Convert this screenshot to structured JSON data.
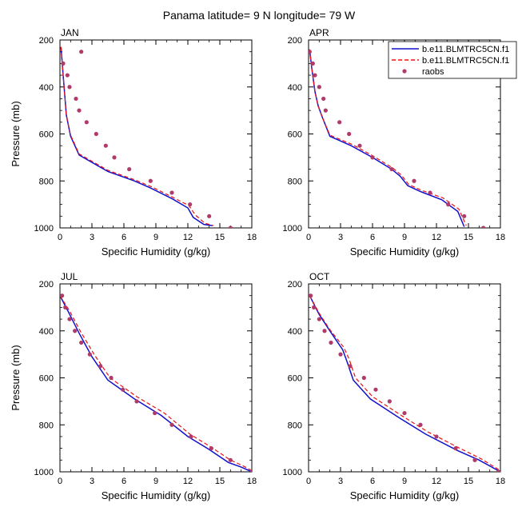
{
  "title": "Panama  latitude= 9 N longitude= 79 W",
  "colors": {
    "model1": "#1111cc",
    "model2": "#ee1111",
    "obs": "#b03a6a"
  },
  "legend": {
    "placement": "top-right of APR panel",
    "entries": [
      "b.e11.BLMTRC5CN.f1",
      "b.e11.BLMTRC5CN.f1",
      "raobs"
    ]
  },
  "chart_data": [
    {
      "type": "line",
      "title": "JAN",
      "xlabel": "Specific Humidity (g/kg)",
      "ylabel": "Pressure (mb)",
      "xlim": [
        0,
        18
      ],
      "ylim": [
        200,
        1000
      ],
      "y_inverted": true,
      "xticks": [
        0,
        3,
        6,
        9,
        12,
        15,
        18
      ],
      "yticks": [
        200,
        400,
        600,
        800,
        1000
      ],
      "series": [
        {
          "name": "b.e11.BLMTRC5CN.f1",
          "style": "solid",
          "color": "#1111cc",
          "points": [
            [
              0.1,
              230
            ],
            [
              0.3,
              350
            ],
            [
              0.6,
              520
            ],
            [
              1.0,
              610
            ],
            [
              1.8,
              690
            ],
            [
              4.5,
              760
            ],
            [
              7.0,
              800
            ],
            [
              8.5,
              830
            ],
            [
              10.5,
              875
            ],
            [
              12.0,
              915
            ],
            [
              12.5,
              955
            ],
            [
              13.5,
              985
            ],
            [
              14.3,
              990
            ]
          ]
        },
        {
          "name": "b.e11.BLMTRC5CN.f1",
          "style": "dashed",
          "color": "#ee1111",
          "points": [
            [
              0.1,
              230
            ],
            [
              0.3,
              350
            ],
            [
              0.6,
              520
            ],
            [
              1.0,
              605
            ],
            [
              1.8,
              685
            ],
            [
              4.5,
              755
            ],
            [
              7.0,
              795
            ],
            [
              8.6,
              825
            ],
            [
              10.6,
              870
            ],
            [
              12.1,
              905
            ],
            [
              12.7,
              945
            ],
            [
              13.6,
              980
            ],
            [
              14.4,
              990
            ]
          ]
        },
        {
          "name": "raobs",
          "style": "markers",
          "color": "#b03a6a",
          "points": [
            [
              2.0,
              250
            ],
            [
              0.3,
              300
            ],
            [
              0.7,
              350
            ],
            [
              0.9,
              400
            ],
            [
              1.5,
              450
            ],
            [
              1.8,
              500
            ],
            [
              2.5,
              550
            ],
            [
              3.4,
              600
            ],
            [
              4.3,
              650
            ],
            [
              5.1,
              700
            ],
            [
              6.5,
              750
            ],
            [
              8.5,
              800
            ],
            [
              10.5,
              850
            ],
            [
              12.2,
              900
            ],
            [
              14.0,
              950
            ],
            [
              16.0,
              1000
            ]
          ]
        }
      ]
    },
    {
      "type": "line",
      "title": "APR",
      "xlabel": "Specific Humidity (g/kg)",
      "ylabel": "",
      "xlim": [
        0,
        18
      ],
      "ylim": [
        200,
        1000
      ],
      "y_inverted": true,
      "xticks": [
        0,
        3,
        6,
        9,
        12,
        15,
        18
      ],
      "yticks": [
        200,
        400,
        600,
        800,
        1000
      ],
      "series": [
        {
          "name": "b.e11.BLMTRC5CN.f1",
          "style": "solid",
          "color": "#1111cc",
          "points": [
            [
              0.1,
              240
            ],
            [
              0.3,
              320
            ],
            [
              0.6,
              420
            ],
            [
              0.9,
              480
            ],
            [
              1.3,
              530
            ],
            [
              2.0,
              610
            ],
            [
              4.0,
              650
            ],
            [
              6.0,
              700
            ],
            [
              7.8,
              750
            ],
            [
              8.6,
              780
            ],
            [
              9.3,
              820
            ],
            [
              10.5,
              845
            ],
            [
              12.5,
              880
            ],
            [
              14.0,
              930
            ],
            [
              14.6,
              995
            ]
          ]
        },
        {
          "name": "b.e11.BLMTRC5CN.f1",
          "style": "dashed",
          "color": "#ee1111",
          "points": [
            [
              0.1,
              240
            ],
            [
              0.3,
              320
            ],
            [
              0.6,
              420
            ],
            [
              0.9,
              480
            ],
            [
              1.3,
              530
            ],
            [
              2.0,
              605
            ],
            [
              4.1,
              645
            ],
            [
              6.1,
              695
            ],
            [
              7.9,
              745
            ],
            [
              8.7,
              775
            ],
            [
              9.4,
              815
            ],
            [
              10.6,
              840
            ],
            [
              12.6,
              872
            ],
            [
              14.1,
              920
            ],
            [
              14.8,
              990
            ]
          ]
        },
        {
          "name": "raobs",
          "style": "markers",
          "color": "#b03a6a",
          "points": [
            [
              0.1,
              250
            ],
            [
              0.4,
              300
            ],
            [
              0.6,
              350
            ],
            [
              1.0,
              400
            ],
            [
              1.4,
              450
            ],
            [
              1.6,
              500
            ],
            [
              2.9,
              550
            ],
            [
              3.8,
              600
            ],
            [
              4.8,
              650
            ],
            [
              6.0,
              700
            ],
            [
              7.8,
              750
            ],
            [
              9.9,
              800
            ],
            [
              11.4,
              850
            ],
            [
              13.1,
              900
            ],
            [
              14.6,
              950
            ],
            [
              16.4,
              1000
            ]
          ]
        }
      ]
    },
    {
      "type": "line",
      "title": "JUL",
      "xlabel": "Specific Humidity (g/kg)",
      "ylabel": "Pressure (mb)",
      "xlim": [
        0,
        18
      ],
      "ylim": [
        200,
        1000
      ],
      "y_inverted": true,
      "xticks": [
        0,
        3,
        6,
        9,
        12,
        15,
        18
      ],
      "yticks": [
        200,
        400,
        600,
        800,
        1000
      ],
      "series": [
        {
          "name": "b.e11.BLMTRC5CN.f1",
          "style": "solid",
          "color": "#1111cc",
          "points": [
            [
              0.0,
              250
            ],
            [
              0.8,
              320
            ],
            [
              1.8,
              410
            ],
            [
              3.0,
              510
            ],
            [
              4.5,
              610
            ],
            [
              7.0,
              690
            ],
            [
              9.5,
              760
            ],
            [
              12.0,
              850
            ],
            [
              14.0,
              905
            ],
            [
              15.8,
              960
            ],
            [
              17.0,
              980
            ],
            [
              18.0,
              1000
            ]
          ]
        },
        {
          "name": "b.e11.BLMTRC5CN.f1",
          "style": "dashed",
          "color": "#ee1111",
          "points": [
            [
              0.0,
              250
            ],
            [
              0.9,
              315
            ],
            [
              1.9,
              400
            ],
            [
              3.2,
              500
            ],
            [
              4.7,
              600
            ],
            [
              7.2,
              680
            ],
            [
              9.8,
              750
            ],
            [
              12.2,
              840
            ],
            [
              14.2,
              895
            ],
            [
              16.0,
              950
            ],
            [
              17.2,
              975
            ],
            [
              18.0,
              995
            ]
          ]
        },
        {
          "name": "raobs",
          "style": "markers",
          "color": "#b03a6a",
          "points": [
            [
              0.2,
              250
            ],
            [
              0.5,
              300
            ],
            [
              0.9,
              350
            ],
            [
              1.4,
              400
            ],
            [
              2.0,
              450
            ],
            [
              2.8,
              500
            ],
            [
              3.8,
              550
            ],
            [
              4.8,
              600
            ],
            [
              5.9,
              650
            ],
            [
              7.2,
              700
            ],
            [
              8.9,
              750
            ],
            [
              10.5,
              800
            ],
            [
              12.3,
              850
            ],
            [
              14.2,
              900
            ],
            [
              16.0,
              950
            ],
            [
              18.0,
              1000
            ]
          ]
        }
      ]
    },
    {
      "type": "line",
      "title": "OCT",
      "xlabel": "Specific Humidity (g/kg)",
      "ylabel": "",
      "xlim": [
        0,
        18
      ],
      "ylim": [
        200,
        1000
      ],
      "y_inverted": true,
      "xticks": [
        0,
        3,
        6,
        9,
        12,
        15,
        18
      ],
      "yticks": [
        200,
        400,
        600,
        800,
        1000
      ],
      "series": [
        {
          "name": "b.e11.BLMTRC5CN.f1",
          "style": "solid",
          "color": "#1111cc",
          "points": [
            [
              0.1,
              250
            ],
            [
              1.0,
              330
            ],
            [
              2.0,
              400
            ],
            [
              3.2,
              480
            ],
            [
              3.6,
              530
            ],
            [
              4.2,
              610
            ],
            [
              5.8,
              690
            ],
            [
              8.5,
              770
            ],
            [
              11.0,
              840
            ],
            [
              14.0,
              910
            ],
            [
              16.0,
              950
            ],
            [
              18.0,
              1000
            ]
          ]
        },
        {
          "name": "b.e11.BLMTRC5CN.f1",
          "style": "dashed",
          "color": "#ee1111",
          "points": [
            [
              0.1,
              250
            ],
            [
              1.0,
              325
            ],
            [
              2.0,
              395
            ],
            [
              3.3,
              470
            ],
            [
              3.8,
              520
            ],
            [
              4.4,
              600
            ],
            [
              6.0,
              680
            ],
            [
              8.7,
              760
            ],
            [
              11.2,
              830
            ],
            [
              14.2,
              900
            ],
            [
              16.2,
              945
            ],
            [
              18.0,
              995
            ]
          ]
        },
        {
          "name": "raobs",
          "style": "markers",
          "color": "#b03a6a",
          "points": [
            [
              0.2,
              250
            ],
            [
              0.5,
              300
            ],
            [
              1.0,
              350
            ],
            [
              1.5,
              400
            ],
            [
              2.1,
              450
            ],
            [
              3.0,
              500
            ],
            [
              3.9,
              550
            ],
            [
              5.2,
              600
            ],
            [
              6.3,
              650
            ],
            [
              7.6,
              700
            ],
            [
              9.0,
              750
            ],
            [
              10.5,
              800
            ],
            [
              12.0,
              850
            ],
            [
              13.8,
              900
            ],
            [
              15.6,
              950
            ],
            [
              17.8,
              1000
            ]
          ]
        }
      ]
    }
  ]
}
